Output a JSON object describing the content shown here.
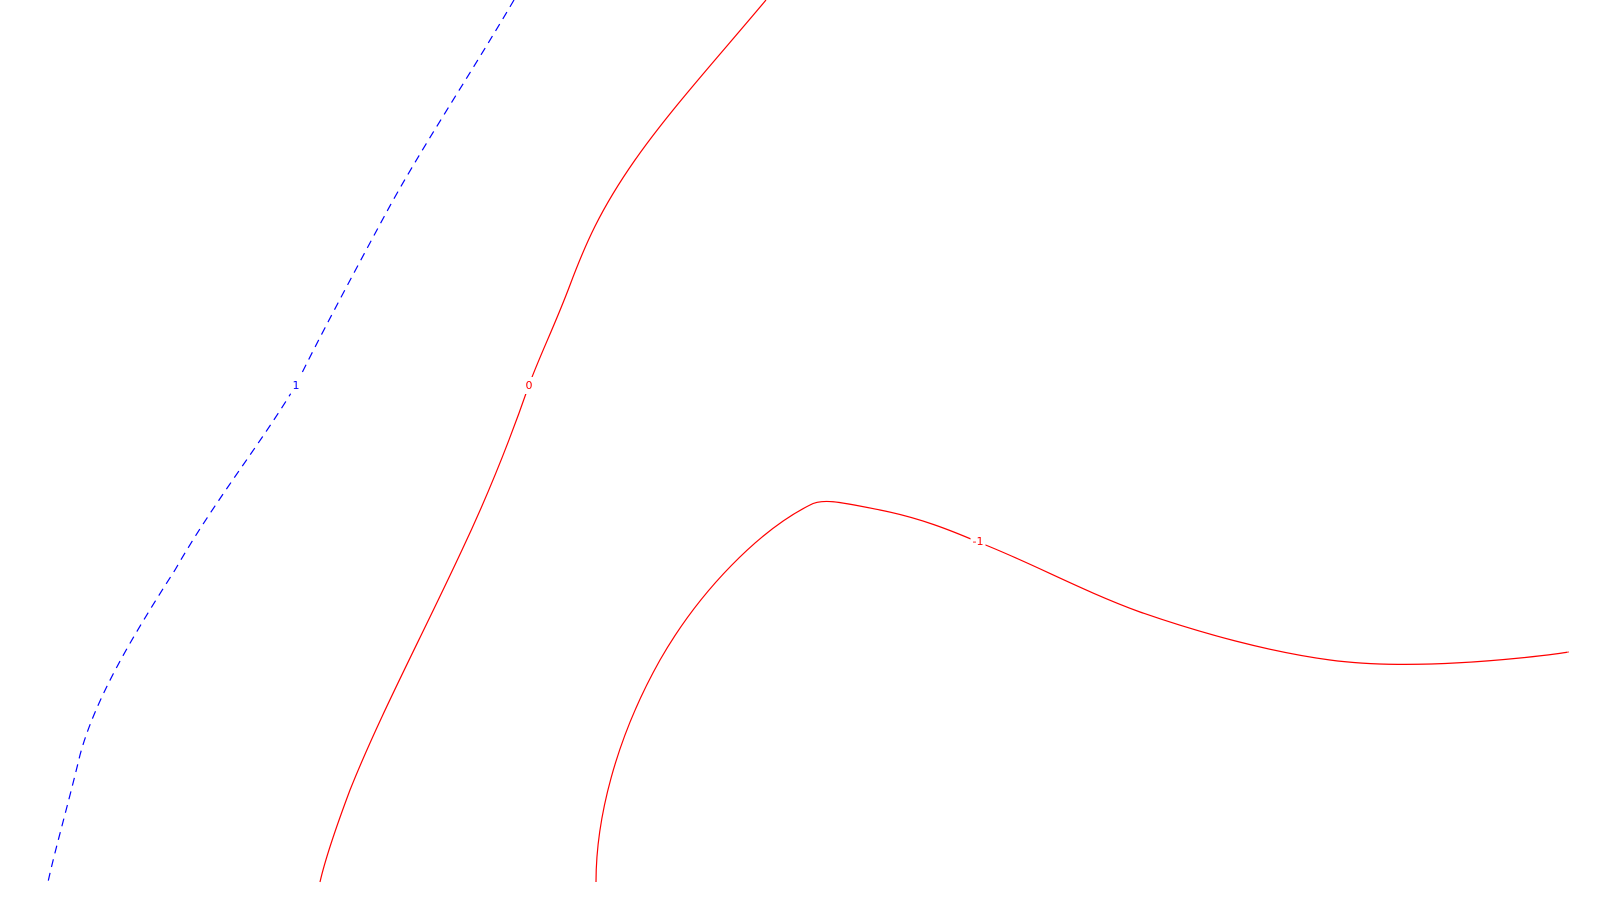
{
  "chart_data": {
    "type": "contour",
    "title": "",
    "xlabel": "",
    "ylabel": "",
    "grid": false,
    "legend": "none",
    "levels": [
      {
        "level_label": "1",
        "color": "#0000ff",
        "linestyle": "dashed"
      },
      {
        "level_label": "0",
        "color": "#ff0000",
        "linestyle": "solid"
      },
      {
        "level_label": "-1",
        "color": "#ff0000",
        "linestyle": "solid"
      }
    ]
  }
}
